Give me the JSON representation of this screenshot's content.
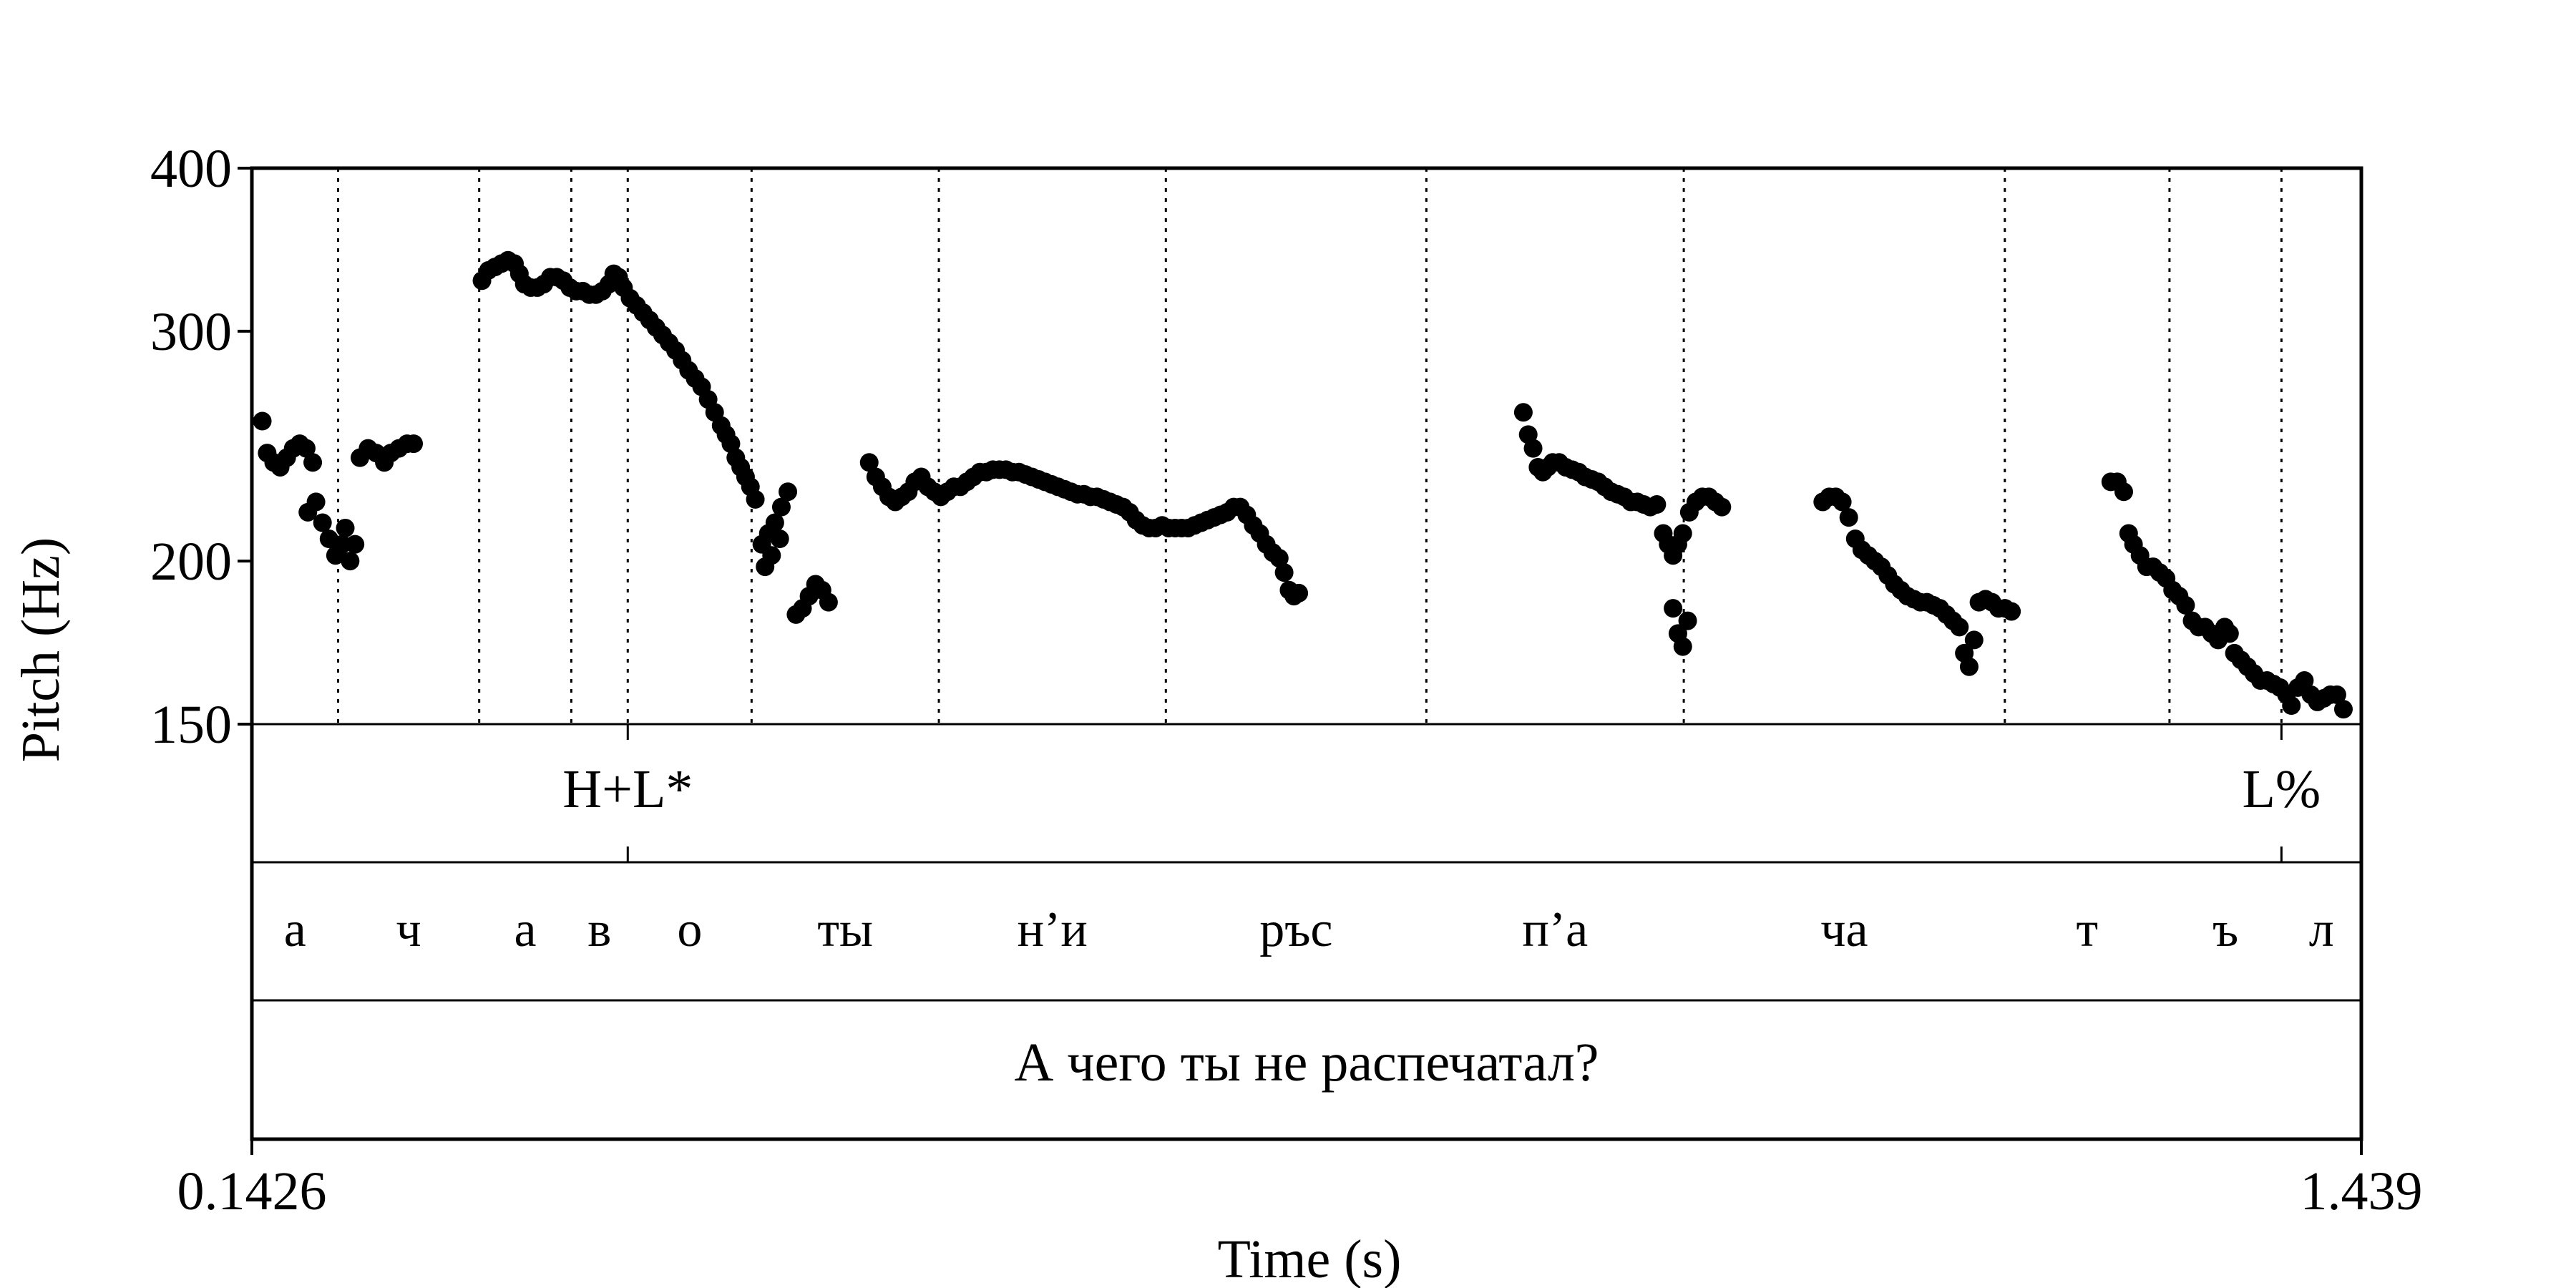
{
  "chart_data": {
    "type": "scatter",
    "ylabel": "Pitch (Hz)",
    "xlabel": "Time (s)",
    "xlim": [
      0.1426,
      1.439
    ],
    "ylim": [
      150,
      400
    ],
    "y_scale": "log",
    "x_tick_labels": [
      "0.1426",
      "1.439"
    ],
    "y_ticks": [
      {
        "value": 150,
        "label": "150"
      },
      {
        "value": 200,
        "label": "200"
      },
      {
        "value": 300,
        "label": "300"
      },
      {
        "value": 400,
        "label": "400"
      }
    ],
    "boundaries": [
      0.1426,
      0.1956,
      0.2823,
      0.3389,
      0.3736,
      0.4497,
      0.5648,
      0.7043,
      0.8644,
      1.0226,
      1.2199,
      1.3211,
      1.3899,
      1.439
    ],
    "tones": [
      {
        "time": 0.3736,
        "label": "H+L*"
      },
      {
        "time": 1.3899,
        "label": "L%"
      }
    ],
    "segments": [
      "а",
      "ч",
      "а",
      "в",
      "о",
      "ты",
      "н’и",
      "ръс",
      "п’а",
      "ча",
      "т",
      "ъ",
      "л"
    ],
    "sentence": "А чего ты не распечатал?",
    "pitch_points": [
      [
        0.149,
        256
      ],
      [
        0.152,
        242
      ],
      [
        0.156,
        238
      ],
      [
        0.16,
        236
      ],
      [
        0.164,
        240
      ],
      [
        0.168,
        244
      ],
      [
        0.172,
        246
      ],
      [
        0.176,
        244
      ],
      [
        0.18,
        238
      ],
      [
        0.177,
        218
      ],
      [
        0.182,
        222
      ],
      [
        0.186,
        214
      ],
      [
        0.19,
        208
      ],
      [
        0.194,
        202
      ],
      [
        0.198,
        206
      ],
      [
        0.2,
        212
      ],
      [
        0.203,
        200
      ],
      [
        0.206,
        206
      ],
      [
        0.196,
        205
      ],
      [
        0.209,
        240
      ],
      [
        0.214,
        244
      ],
      [
        0.219,
        242
      ],
      [
        0.224,
        238
      ],
      [
        0.228,
        242
      ],
      [
        0.233,
        244
      ],
      [
        0.238,
        246
      ],
      [
        0.242,
        246
      ],
      [
        0.284,
        328
      ],
      [
        0.288,
        334
      ],
      [
        0.292,
        336
      ],
      [
        0.296,
        338
      ],
      [
        0.3,
        340
      ],
      [
        0.304,
        338
      ],
      [
        0.307,
        332
      ],
      [
        0.31,
        326
      ],
      [
        0.314,
        324
      ],
      [
        0.318,
        324
      ],
      [
        0.322,
        326
      ],
      [
        0.326,
        330
      ],
      [
        0.33,
        330
      ],
      [
        0.334,
        328
      ],
      [
        0.338,
        324
      ],
      [
        0.342,
        322
      ],
      [
        0.346,
        322
      ],
      [
        0.35,
        320
      ],
      [
        0.354,
        320
      ],
      [
        0.358,
        322
      ],
      [
        0.362,
        326
      ],
      [
        0.365,
        332
      ],
      [
        0.368,
        330
      ],
      [
        0.371,
        324
      ],
      [
        0.375,
        318
      ],
      [
        0.379,
        314
      ],
      [
        0.383,
        310
      ],
      [
        0.387,
        306
      ],
      [
        0.391,
        302
      ],
      [
        0.395,
        298
      ],
      [
        0.399,
        294
      ],
      [
        0.403,
        290
      ],
      [
        0.407,
        285
      ],
      [
        0.411,
        280
      ],
      [
        0.415,
        276
      ],
      [
        0.419,
        272
      ],
      [
        0.423,
        266
      ],
      [
        0.427,
        260
      ],
      [
        0.431,
        254
      ],
      [
        0.434,
        250
      ],
      [
        0.437,
        246
      ],
      [
        0.44,
        240
      ],
      [
        0.443,
        236
      ],
      [
        0.446,
        232
      ],
      [
        0.449,
        228
      ],
      [
        0.452,
        223
      ],
      [
        0.456,
        206
      ],
      [
        0.46,
        210
      ],
      [
        0.464,
        214
      ],
      [
        0.468,
        220
      ],
      [
        0.472,
        226
      ],
      [
        0.458,
        198
      ],
      [
        0.462,
        202
      ],
      [
        0.467,
        208
      ],
      [
        0.477,
        182
      ],
      [
        0.481,
        184
      ],
      [
        0.485,
        188
      ],
      [
        0.489,
        192
      ],
      [
        0.493,
        190
      ],
      [
        0.497,
        186
      ],
      [
        0.522,
        238
      ],
      [
        0.526,
        232
      ],
      [
        0.53,
        228
      ],
      [
        0.534,
        224
      ],
      [
        0.538,
        222
      ],
      [
        0.542,
        224
      ],
      [
        0.546,
        226
      ],
      [
        0.55,
        230
      ],
      [
        0.554,
        232
      ],
      [
        0.558,
        228
      ],
      [
        0.562,
        226
      ],
      [
        0.566,
        224
      ],
      [
        0.57,
        226
      ],
      [
        0.574,
        228
      ],
      [
        0.578,
        228
      ],
      [
        0.582,
        230
      ],
      [
        0.586,
        232
      ],
      [
        0.59,
        234
      ],
      [
        0.594,
        234
      ],
      [
        0.598,
        235
      ],
      [
        0.602,
        235
      ],
      [
        0.606,
        235
      ],
      [
        0.61,
        234
      ],
      [
        0.614,
        234
      ],
      [
        0.618,
        233
      ],
      [
        0.622,
        232
      ],
      [
        0.626,
        231
      ],
      [
        0.63,
        230
      ],
      [
        0.634,
        229
      ],
      [
        0.638,
        228
      ],
      [
        0.642,
        227
      ],
      [
        0.646,
        226
      ],
      [
        0.65,
        225
      ],
      [
        0.654,
        225
      ],
      [
        0.658,
        224
      ],
      [
        0.662,
        224
      ],
      [
        0.666,
        223
      ],
      [
        0.67,
        222
      ],
      [
        0.674,
        221
      ],
      [
        0.678,
        220
      ],
      [
        0.682,
        218
      ],
      [
        0.686,
        215
      ],
      [
        0.69,
        213
      ],
      [
        0.694,
        212
      ],
      [
        0.698,
        212
      ],
      [
        0.702,
        213
      ],
      [
        0.706,
        212
      ],
      [
        0.71,
        212
      ],
      [
        0.714,
        212
      ],
      [
        0.718,
        212
      ],
      [
        0.722,
        213
      ],
      [
        0.726,
        214
      ],
      [
        0.73,
        215
      ],
      [
        0.734,
        216
      ],
      [
        0.738,
        217
      ],
      [
        0.742,
        218
      ],
      [
        0.746,
        220
      ],
      [
        0.75,
        220
      ],
      [
        0.754,
        217
      ],
      [
        0.758,
        213
      ],
      [
        0.762,
        210
      ],
      [
        0.766,
        206
      ],
      [
        0.77,
        203
      ],
      [
        0.774,
        201
      ],
      [
        0.777,
        196
      ],
      [
        0.78,
        190
      ],
      [
        0.783,
        188
      ],
      [
        0.786,
        189
      ],
      [
        0.924,
        260
      ],
      [
        0.927,
        250
      ],
      [
        0.93,
        244
      ],
      [
        0.933,
        236
      ],
      [
        0.936,
        234
      ],
      [
        0.939,
        236
      ],
      [
        0.942,
        238
      ],
      [
        0.946,
        238
      ],
      [
        0.95,
        236
      ],
      [
        0.954,
        235
      ],
      [
        0.958,
        234
      ],
      [
        0.962,
        232
      ],
      [
        0.966,
        231
      ],
      [
        0.97,
        230
      ],
      [
        0.974,
        228
      ],
      [
        0.978,
        226
      ],
      [
        0.982,
        225
      ],
      [
        0.986,
        224
      ],
      [
        0.99,
        222
      ],
      [
        0.994,
        222
      ],
      [
        0.998,
        221
      ],
      [
        1.002,
        220
      ],
      [
        1.006,
        221
      ],
      [
        1.01,
        210
      ],
      [
        1.013,
        206
      ],
      [
        1.016,
        202
      ],
      [
        1.019,
        206
      ],
      [
        1.022,
        210
      ],
      [
        1.026,
        218
      ],
      [
        1.03,
        222
      ],
      [
        1.034,
        224
      ],
      [
        1.038,
        224
      ],
      [
        1.042,
        222
      ],
      [
        1.046,
        220
      ],
      [
        1.016,
        184
      ],
      [
        1.019,
        176
      ],
      [
        1.022,
        172
      ],
      [
        1.025,
        180
      ],
      [
        1.108,
        222
      ],
      [
        1.112,
        224
      ],
      [
        1.116,
        224
      ],
      [
        1.12,
        222
      ],
      [
        1.124,
        216
      ],
      [
        1.128,
        208
      ],
      [
        1.132,
        204
      ],
      [
        1.136,
        202
      ],
      [
        1.14,
        200
      ],
      [
        1.144,
        198
      ],
      [
        1.148,
        195
      ],
      [
        1.152,
        192
      ],
      [
        1.156,
        190
      ],
      [
        1.16,
        188
      ],
      [
        1.164,
        187
      ],
      [
        1.168,
        186
      ],
      [
        1.172,
        186
      ],
      [
        1.176,
        185
      ],
      [
        1.18,
        184
      ],
      [
        1.184,
        182
      ],
      [
        1.188,
        180
      ],
      [
        1.192,
        178
      ],
      [
        1.195,
        170
      ],
      [
        1.198,
        166
      ],
      [
        1.201,
        174
      ],
      [
        1.204,
        186
      ],
      [
        1.208,
        187
      ],
      [
        1.212,
        186
      ],
      [
        1.216,
        184
      ],
      [
        1.22,
        184
      ],
      [
        1.224,
        183
      ],
      [
        1.285,
        230
      ],
      [
        1.289,
        230
      ],
      [
        1.293,
        226
      ],
      [
        1.296,
        210
      ],
      [
        1.299,
        206
      ],
      [
        1.303,
        202
      ],
      [
        1.307,
        198
      ],
      [
        1.311,
        198
      ],
      [
        1.315,
        196
      ],
      [
        1.319,
        194
      ],
      [
        1.323,
        190
      ],
      [
        1.327,
        188
      ],
      [
        1.331,
        185
      ],
      [
        1.335,
        180
      ],
      [
        1.339,
        178
      ],
      [
        1.343,
        178
      ],
      [
        1.347,
        176
      ],
      [
        1.351,
        174
      ],
      [
        1.355,
        178
      ],
      [
        1.358,
        176
      ],
      [
        1.361,
        170
      ],
      [
        1.365,
        168
      ],
      [
        1.369,
        166
      ],
      [
        1.373,
        164
      ],
      [
        1.377,
        162
      ],
      [
        1.381,
        162
      ],
      [
        1.385,
        161
      ],
      [
        1.389,
        160
      ],
      [
        1.393,
        158
      ],
      [
        1.396,
        155
      ],
      [
        1.4,
        160
      ],
      [
        1.404,
        162
      ],
      [
        1.408,
        158
      ],
      [
        1.412,
        156
      ],
      [
        1.416,
        157
      ],
      [
        1.42,
        158
      ],
      [
        1.424,
        158
      ],
      [
        1.428,
        154
      ]
    ]
  }
}
